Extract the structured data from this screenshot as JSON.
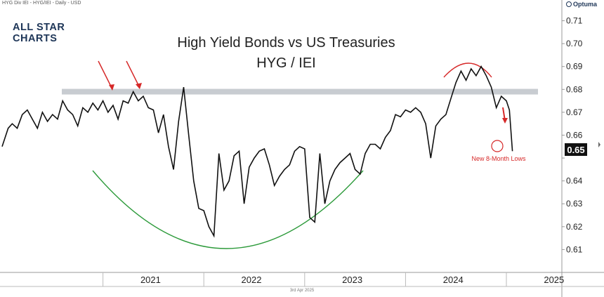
{
  "header": {
    "chart_info": "HYG Div IEI - HYG/IEI - Daily - USD",
    "optuma_logo_text": "Optuma"
  },
  "brand": {
    "line1": "ALL STAR",
    "line2": "CHARTS"
  },
  "chart_data": {
    "type": "line",
    "title": "High Yield Bonds vs US Treasuries",
    "subtitle": "HYG / IEI",
    "xlabel": "",
    "ylabel": "",
    "x_ticks": [
      "2021",
      "2022",
      "2023",
      "2024",
      "2025"
    ],
    "y_ticks": [
      0.61,
      0.62,
      0.63,
      0.64,
      0.65,
      0.66,
      0.67,
      0.68,
      0.69,
      0.7,
      0.71
    ],
    "ylim": [
      0.6,
      0.716
    ],
    "last_value_label": "0.65",
    "resistance_level": 0.679,
    "annotation": "New 8-Month Lows",
    "date_note": "3rd Apr 2025",
    "grid": false,
    "series": [
      {
        "values": [
          [
            2020.0,
            0.655
          ],
          [
            2020.03,
            0.659
          ],
          [
            2020.06,
            0.663
          ],
          [
            2020.1,
            0.665
          ],
          [
            2020.15,
            0.663
          ],
          [
            2020.2,
            0.669
          ],
          [
            2020.25,
            0.671
          ],
          [
            2020.3,
            0.667
          ],
          [
            2020.35,
            0.663
          ],
          [
            2020.4,
            0.67
          ],
          [
            2020.45,
            0.666
          ],
          [
            2020.5,
            0.669
          ],
          [
            2020.55,
            0.667
          ],
          [
            2020.6,
            0.675
          ],
          [
            2020.65,
            0.671
          ],
          [
            2020.7,
            0.669
          ],
          [
            2020.75,
            0.664
          ],
          [
            2020.8,
            0.672
          ],
          [
            2020.85,
            0.67
          ],
          [
            2020.9,
            0.674
          ],
          [
            2020.95,
            0.671
          ],
          [
            2021.0,
            0.675
          ],
          [
            2021.05,
            0.67
          ],
          [
            2021.1,
            0.673
          ],
          [
            2021.15,
            0.667
          ],
          [
            2021.2,
            0.675
          ],
          [
            2021.25,
            0.674
          ],
          [
            2021.3,
            0.679
          ],
          [
            2021.35,
            0.675
          ],
          [
            2021.4,
            0.677
          ],
          [
            2021.45,
            0.672
          ],
          [
            2021.5,
            0.671
          ],
          [
            2021.55,
            0.661
          ],
          [
            2021.6,
            0.669
          ],
          [
            2021.65,
            0.655
          ],
          [
            2021.7,
            0.645
          ],
          [
            2021.75,
            0.666
          ],
          [
            2021.8,
            0.681
          ],
          [
            2021.85,
            0.66
          ],
          [
            2021.9,
            0.64
          ],
          [
            2021.95,
            0.628
          ],
          [
            2022.0,
            0.627
          ],
          [
            2022.05,
            0.62
          ],
          [
            2022.1,
            0.616
          ],
          [
            2022.15,
            0.652
          ],
          [
            2022.2,
            0.636
          ],
          [
            2022.25,
            0.64
          ],
          [
            2022.3,
            0.651
          ],
          [
            2022.35,
            0.653
          ],
          [
            2022.4,
            0.63
          ],
          [
            2022.45,
            0.646
          ],
          [
            2022.5,
            0.65
          ],
          [
            2022.55,
            0.653
          ],
          [
            2022.6,
            0.654
          ],
          [
            2022.65,
            0.647
          ],
          [
            2022.7,
            0.638
          ],
          [
            2022.75,
            0.642
          ],
          [
            2022.8,
            0.645
          ],
          [
            2022.85,
            0.647
          ],
          [
            2022.9,
            0.653
          ],
          [
            2022.95,
            0.655
          ],
          [
            2023.0,
            0.654
          ],
          [
            2023.05,
            0.624
          ],
          [
            2023.1,
            0.622
          ],
          [
            2023.15,
            0.652
          ],
          [
            2023.2,
            0.63
          ],
          [
            2023.25,
            0.64
          ],
          [
            2023.3,
            0.645
          ],
          [
            2023.35,
            0.648
          ],
          [
            2023.4,
            0.65
          ],
          [
            2023.45,
            0.652
          ],
          [
            2023.5,
            0.645
          ],
          [
            2023.55,
            0.643
          ],
          [
            2023.6,
            0.652
          ],
          [
            2023.65,
            0.656
          ],
          [
            2023.7,
            0.656
          ],
          [
            2023.75,
            0.654
          ],
          [
            2023.8,
            0.659
          ],
          [
            2023.85,
            0.662
          ],
          [
            2023.9,
            0.669
          ],
          [
            2023.95,
            0.668
          ],
          [
            2024.0,
            0.671
          ],
          [
            2024.05,
            0.67
          ],
          [
            2024.1,
            0.672
          ],
          [
            2024.15,
            0.67
          ],
          [
            2024.2,
            0.665
          ],
          [
            2024.25,
            0.65
          ],
          [
            2024.3,
            0.664
          ],
          [
            2024.35,
            0.667
          ],
          [
            2024.4,
            0.669
          ],
          [
            2024.45,
            0.676
          ],
          [
            2024.5,
            0.683
          ],
          [
            2024.55,
            0.688
          ],
          [
            2024.6,
            0.684
          ],
          [
            2024.65,
            0.689
          ],
          [
            2024.7,
            0.686
          ],
          [
            2024.75,
            0.69
          ],
          [
            2024.8,
            0.686
          ],
          [
            2024.85,
            0.681
          ],
          [
            2024.9,
            0.672
          ],
          [
            2024.95,
            0.677
          ],
          [
            2025.0,
            0.675
          ],
          [
            2025.03,
            0.671
          ],
          [
            2025.06,
            0.653
          ]
        ]
      }
    ]
  },
  "colors": {
    "line": "#111111",
    "resistance_band": "#c8ccd1",
    "arrow_red": "#d62828",
    "arc_green": "#2c9a3a",
    "last_value_bg": "#111111"
  }
}
